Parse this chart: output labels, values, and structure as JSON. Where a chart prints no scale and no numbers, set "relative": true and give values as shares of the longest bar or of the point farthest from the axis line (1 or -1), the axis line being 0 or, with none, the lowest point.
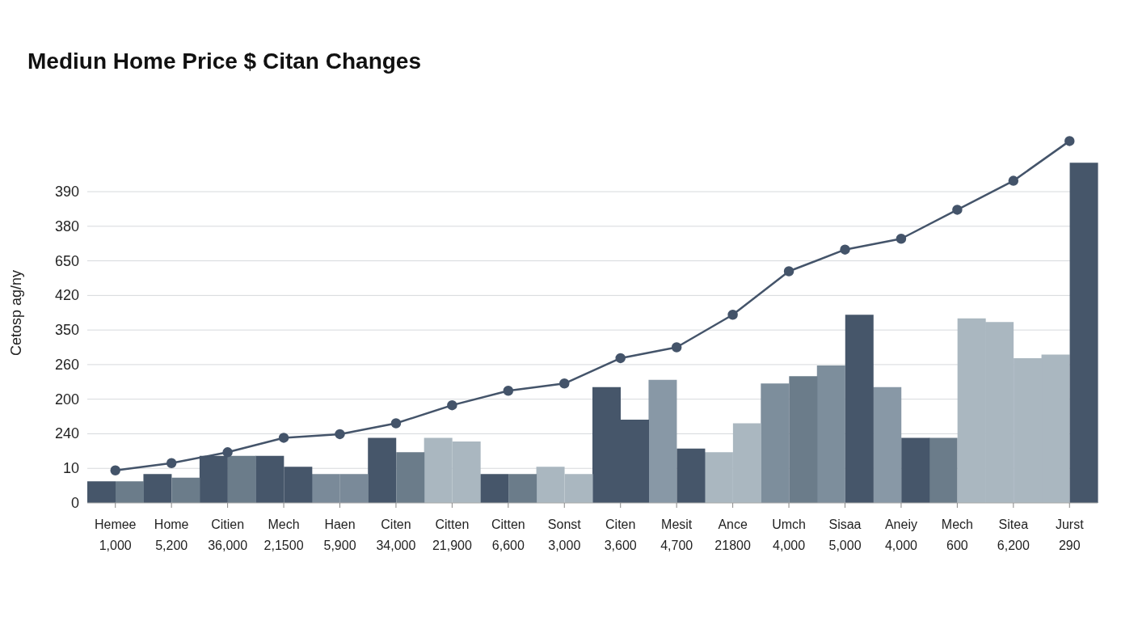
{
  "chart_data": {
    "type": "bar",
    "relative": true,
    "title": "Mediun Home Price $ Citan Changes",
    "ylabel": "Cetosp ag/ny",
    "annotations": [
      "390",
      "380",
      "650",
      "420",
      "350",
      "260",
      "200",
      "240",
      "10",
      "0"
    ],
    "categories": [
      "Hemee\n1,000",
      "Home\n5,200",
      "Citien\n36,000",
      "Mech\n2,1500",
      "Haen\n5,900",
      "Citen\n34,000",
      "Citten\n21,900",
      "Citten\n6,600",
      "Sonst\n3,000",
      "Citen\n3,600",
      "Mesit\n4,700",
      "Ance\n21800",
      "Umch\n4,000",
      "Sisaa\n5,000",
      "Aneiy\n4,000",
      "Mech\n600",
      "Sitea\n6,200",
      "Jurst\n290"
    ],
    "series": [
      {
        "color": "#46566a",
        "colors": [
          "#46566a",
          "#46566a",
          "#46566a",
          "#46566a",
          "#7a8a99",
          "#46566a",
          "#aab7c0",
          "#46566a",
          "#aab7c0",
          "#46566a",
          "#8898a6",
          "#aab7c0",
          "#7d8e9c",
          "#7d8e9c",
          "#8898a6",
          "#6b7c8a",
          "#aab7c0",
          "#aab7c0"
        ],
        "values": [
          0.06,
          0.08,
          0.13,
          0.13,
          0.08,
          0.18,
          0.18,
          0.08,
          0.1,
          0.32,
          0.34,
          0.14,
          0.33,
          0.38,
          0.32,
          0.18,
          0.5,
          0.41
        ]
      },
      {
        "color": "#6b7c8a",
        "colors": [
          "#6b7c8a",
          "#6b7c8a",
          "#6b7c8a",
          "#46566a",
          "#7a8a99",
          "#6b7c8a",
          "#aab7c0",
          "#6b7c8a",
          "#aab7c0",
          "#46566a",
          "#46566a",
          "#aab7c0",
          "#6b7c8a",
          "#46566a",
          "#46566a",
          "#aab7c0",
          "#aab7c0",
          "#46566a"
        ],
        "values": [
          0.06,
          0.07,
          0.13,
          0.1,
          0.08,
          0.14,
          0.17,
          0.08,
          0.08,
          0.23,
          0.15,
          0.22,
          0.35,
          0.52,
          0.18,
          0.51,
          0.4,
          0.94
        ]
      },
      {
        "type": "line",
        "color": "#44546a",
        "values": [
          0.09,
          0.11,
          0.14,
          0.18,
          0.19,
          0.22,
          0.27,
          0.31,
          0.33,
          0.4,
          0.43,
          0.52,
          0.64,
          0.7,
          0.73,
          0.81,
          0.89,
          1
        ]
      }
    ],
    "grid": "y",
    "marker": "circle",
    "line_style": "solid",
    "legend": false
  }
}
